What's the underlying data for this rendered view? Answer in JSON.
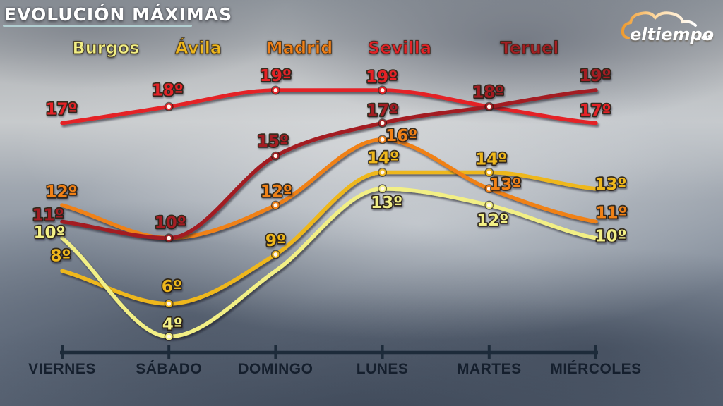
{
  "title": "EVOLUCIÓN MÁXIMAS",
  "logo": {
    "text": "eltiempo",
    "tld": ".es"
  },
  "legend": {
    "cities": [
      {
        "label": "Burgos",
        "color": "#f2ef85"
      },
      {
        "label": "Ávila",
        "color": "#eeb71f"
      },
      {
        "label": "Madrid",
        "color": "#f08119"
      },
      {
        "label": "Sevilla",
        "color": "#e42328"
      },
      {
        "label": "Teruel",
        "color": "#a31e23"
      }
    ]
  },
  "chart_data": {
    "type": "line",
    "title": "EVOLUCIÓN MÁXIMAS",
    "x_categories": [
      "VIERNES",
      "SÁBADO",
      "DOMINGO",
      "LUNES",
      "MARTES",
      "MIÉRCOLES"
    ],
    "unit": "º",
    "ylim": [
      3,
      20
    ],
    "grid": false,
    "legend_position": "top",
    "series": [
      {
        "name": "Burgos",
        "color": "#f2ef85",
        "values": [
          10,
          4,
          8,
          13,
          12,
          10
        ],
        "point_labels": [
          "10º",
          "4º",
          null,
          "13º",
          "12º",
          "10º"
        ],
        "dot_days": [
          1,
          3,
          4
        ],
        "label_offsets": [
          [
            -18,
            -8
          ],
          [
            5,
            -18
          ],
          null,
          [
            6,
            19
          ],
          [
            5,
            21
          ],
          [
            21,
            -3
          ]
        ]
      },
      {
        "name": "Ávila",
        "color": "#eeb71f",
        "values": [
          8,
          6,
          9,
          14,
          14,
          13
        ],
        "point_labels": [
          "8º",
          "6º",
          "9º",
          "14º",
          "14º",
          "13º"
        ],
        "dot_days": [
          1,
          2,
          3,
          4
        ],
        "label_offsets": [
          [
            -2,
            -22
          ],
          [
            4,
            -25
          ],
          [
            0,
            -20
          ],
          [
            1,
            -21
          ],
          [
            3,
            -19
          ],
          [
            21,
            -7
          ]
        ]
      },
      {
        "name": "Madrid",
        "color": "#f08119",
        "values": [
          12,
          10,
          12,
          16,
          13,
          11
        ],
        "point_labels": [
          "12º",
          null,
          "12º",
          "16º",
          "13º",
          "11º"
        ],
        "dot_days": [
          2,
          3,
          4
        ],
        "label_offsets": [
          [
            -1,
            -19
          ],
          null,
          [
            1,
            -20
          ],
          [
            27,
            -6
          ],
          [
            23,
            -7
          ],
          [
            22,
            -13
          ]
        ]
      },
      {
        "name": "Sevilla",
        "color": "#e42328",
        "values": [
          17,
          18,
          19,
          19,
          18,
          17
        ],
        "point_labels": [
          "17º",
          "18º",
          "19º",
          "19º",
          null,
          "17º"
        ],
        "dot_days": [
          1,
          2,
          3
        ],
        "label_offsets": [
          [
            -1,
            -20
          ],
          [
            -2,
            -24
          ],
          [
            0,
            -21
          ],
          [
            -1,
            -19
          ],
          null,
          [
            -1,
            -18
          ]
        ]
      },
      {
        "name": "Teruel",
        "color": "#a31e23",
        "values": [
          11,
          10,
          15,
          17,
          18,
          19
        ],
        "point_labels": [
          "11º",
          "10º",
          "15º",
          "17º",
          "18º",
          "19º"
        ],
        "dot_days": [
          1,
          2,
          3,
          4
        ],
        "label_offsets": [
          [
            -20,
            -10
          ],
          [
            2,
            -22
          ],
          [
            -4,
            -21
          ],
          [
            0,
            -18
          ],
          [
            -1,
            -21
          ],
          [
            -1,
            -21
          ]
        ]
      }
    ],
    "axis_color": "#1d2b3a"
  }
}
